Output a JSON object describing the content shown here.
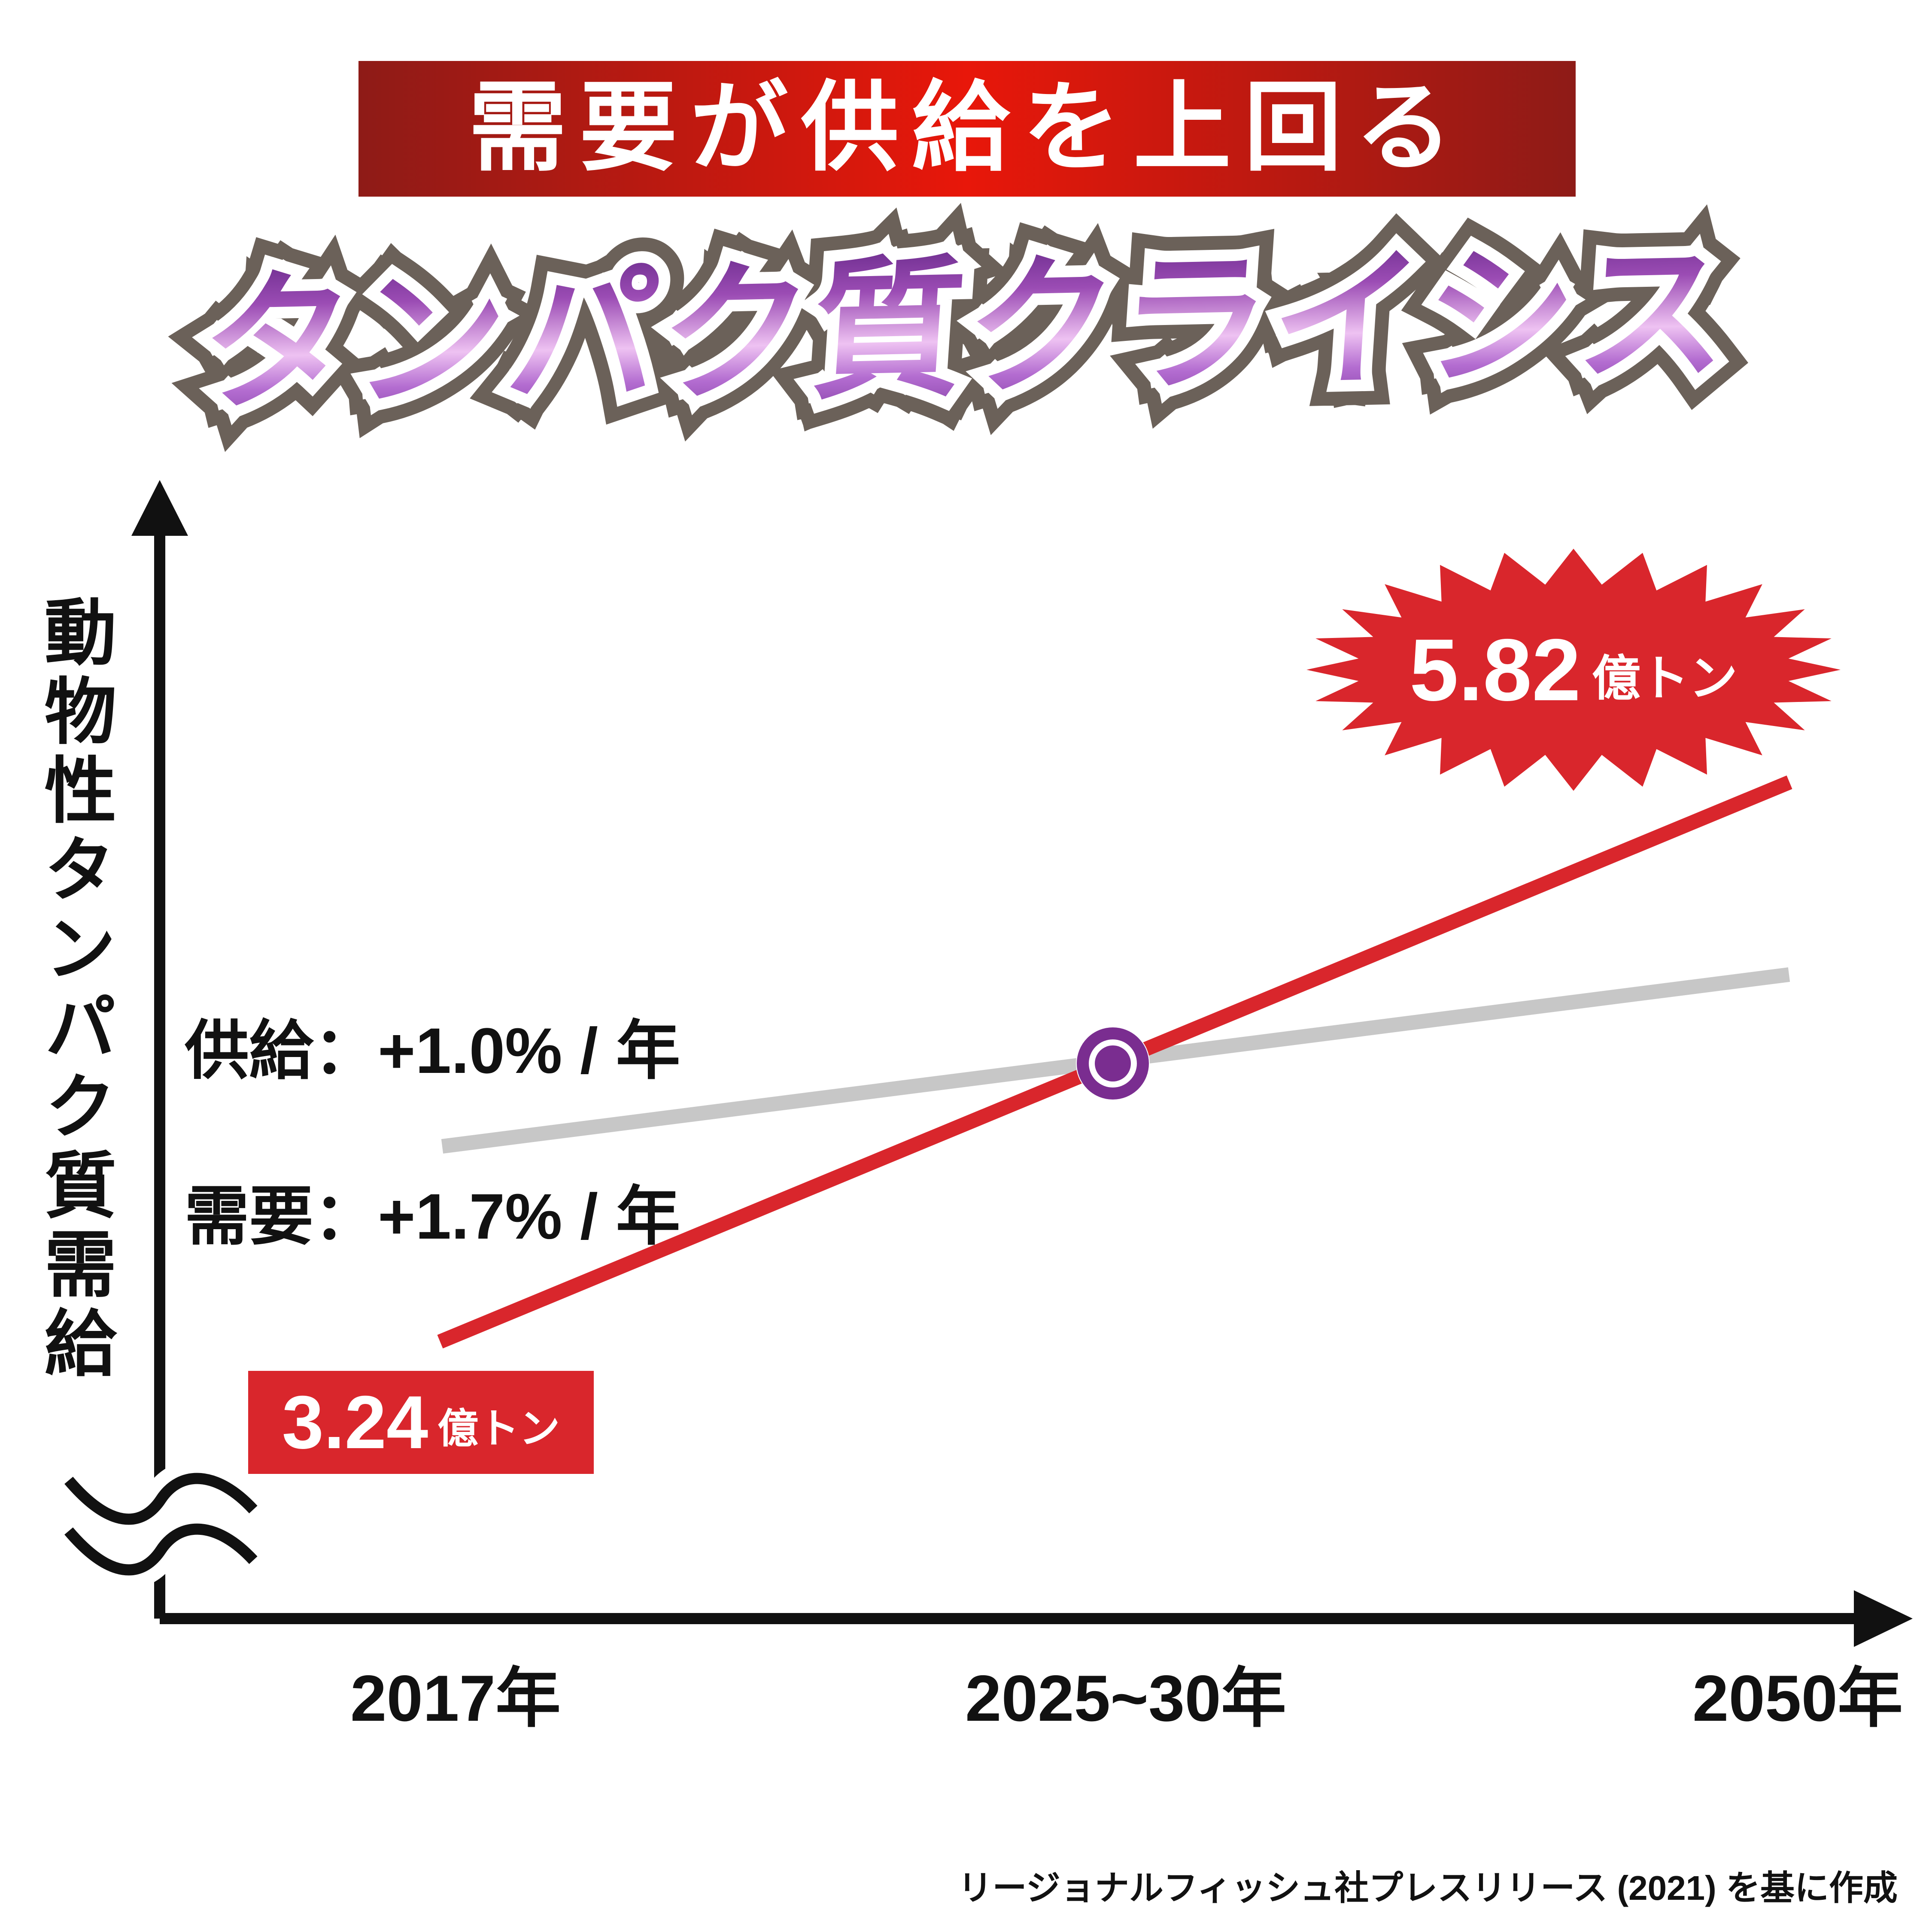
{
  "banner": {
    "text": "需要が供給を上回る"
  },
  "title": {
    "text": "タンパク質クライシス"
  },
  "chart": {
    "y_axis_label": "動物性タンパク質需給",
    "x_labels": [
      "2017年",
      "2025~30年",
      "2050年"
    ],
    "supply_label": "供給：+1.0% / 年",
    "demand_label": "需要：+1.7% / 年",
    "start_badge": {
      "value": "3.24",
      "unit": "億トン"
    },
    "end_badge": {
      "value": "5.82",
      "unit": "億トン"
    }
  },
  "source": "リージョナルフィッシュ社プレスリリース (2021) を基に作成",
  "colors": {
    "red": "#d9262c",
    "gray": "#c7c7c7",
    "purple": "#7a2d90",
    "banner_edge": "#8e1b17",
    "banner_center": "#e8170a"
  },
  "chart_data": {
    "type": "line",
    "title": "タンパク質クライシス（需要が供給を上回る）",
    "ylabel": "動物性タンパク質需給",
    "x": [
      "2017",
      "2025~30",
      "2050"
    ],
    "x_tick_labels": [
      "2017年",
      "2025~30年",
      "2050年"
    ],
    "series": [
      {
        "name": "需要",
        "growth_rate": "+1.7% / 年",
        "color": "#d9262c",
        "unit": "億トン",
        "points": [
          {
            "x": "2017",
            "value": 3.24
          },
          {
            "x": "2050",
            "value": 5.82
          }
        ]
      },
      {
        "name": "供給",
        "growth_rate": "+1.0% / 年",
        "color": "#c7c7c7",
        "points": []
      }
    ],
    "annotations": [
      {
        "type": "badge",
        "text": "3.24億トン",
        "x": "2017",
        "series": "需要"
      },
      {
        "type": "starburst-badge",
        "text": "5.82億トン",
        "x": "2050",
        "series": "需要"
      },
      {
        "type": "intersection-marker",
        "x": "2025~30",
        "note": "需要と供給が交差する点",
        "color": "#7a2d90"
      }
    ],
    "legend_position": "inline-labels",
    "grid": false,
    "axis_break": true
  }
}
